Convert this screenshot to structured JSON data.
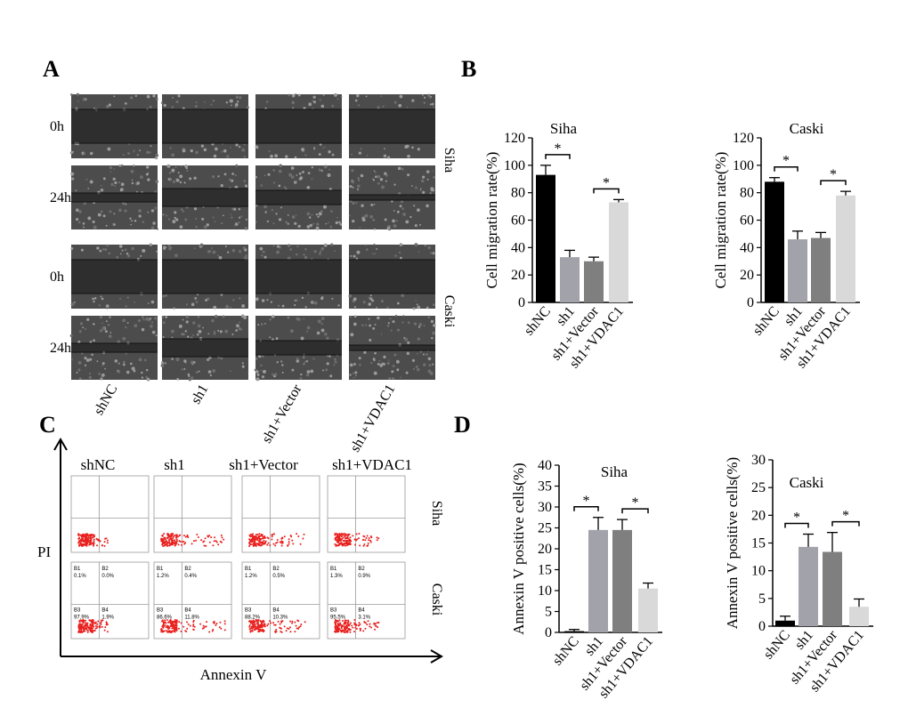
{
  "panel_labels": [
    "A",
    "B",
    "C",
    "D"
  ],
  "wound": {
    "times": [
      "0h",
      "24h",
      "0h",
      "24h"
    ],
    "cells": [
      "Siha",
      "Caski"
    ],
    "groups": [
      "shNC",
      "sh1",
      "sh1+Vector",
      "sh1+VDAC1"
    ]
  },
  "flow": {
    "columns": [
      "shNC",
      "sh1",
      "sh1+Vector",
      "sh1+VDAC1"
    ],
    "rows": [
      "Siha",
      "Caski"
    ],
    "y_label": "PI",
    "x_label": "Annexin V",
    "caski_quadrants": [
      [
        [
          "B1",
          "0.1%"
        ],
        [
          "B2",
          "0.0%"
        ],
        [
          "B3",
          "97.9%"
        ],
        [
          "B4",
          "1.9%"
        ]
      ],
      [
        [
          "B1",
          "1.2%"
        ],
        [
          "B2",
          "0.4%"
        ],
        [
          "B3",
          "86.6%"
        ],
        [
          "B4",
          "11.8%"
        ]
      ],
      [
        [
          "B1",
          "1.2%"
        ],
        [
          "B2",
          "0.5%"
        ],
        [
          "B3",
          "88.2%"
        ],
        [
          "B4",
          "10.3%"
        ]
      ],
      [
        [
          "B1",
          "1.3%"
        ],
        [
          "B2",
          "0.9%"
        ],
        [
          "B3",
          "95.5%"
        ],
        [
          "B4",
          "3.1%"
        ]
      ]
    ]
  },
  "chart_data": [
    {
      "type": "bar",
      "title": "Siha",
      "y_label": "Cell migration rate(%)",
      "categories": [
        "shNC",
        "sh1",
        "sh1+Vector",
        "sh1+VDAC1"
      ],
      "values": [
        93,
        33,
        30,
        73
      ],
      "errors": [
        7,
        5,
        3,
        2
      ],
      "colors": [
        "#000000",
        "#a2a2aa",
        "#7f7f7f",
        "#d9d9d9"
      ],
      "ylim": [
        0,
        120
      ],
      "yticks": [
        0,
        20,
        40,
        60,
        80,
        100,
        120
      ],
      "annotations": [
        "*",
        "*"
      ]
    },
    {
      "type": "bar",
      "title": "Caski",
      "y_label": "Cell migration rate(%)",
      "categories": [
        "shNC",
        "sh1",
        "sh1+Vector",
        "sh1+VDAC1"
      ],
      "values": [
        88,
        46,
        47,
        78
      ],
      "errors": [
        3,
        6,
        4,
        3
      ],
      "colors": [
        "#000000",
        "#a2a2aa",
        "#7f7f7f",
        "#d9d9d9"
      ],
      "ylim": [
        0,
        120
      ],
      "yticks": [
        0,
        20,
        40,
        60,
        80,
        100,
        120
      ],
      "annotations": [
        "*",
        "*"
      ]
    },
    {
      "type": "bar",
      "title": "Siha",
      "y_label": "Annexin V positive cells(%)",
      "categories": [
        "shNC",
        "sh1",
        "sh1+Vector",
        "sh1+VDAC1"
      ],
      "values": [
        0.3,
        24.5,
        24.5,
        10.5
      ],
      "errors": [
        0.4,
        3,
        2.5,
        1.3
      ],
      "colors": [
        "#000000",
        "#a2a2aa",
        "#7f7f7f",
        "#d9d9d9"
      ],
      "ylim": [
        0,
        40
      ],
      "yticks": [
        0,
        5,
        10,
        15,
        20,
        25,
        30,
        35,
        40
      ],
      "annotations": [
        "*",
        "*"
      ]
    },
    {
      "type": "bar",
      "title": "Caski",
      "y_label": "Annexin V positive cells(%)",
      "categories": [
        "shNC",
        "sh1",
        "sh1+Vector",
        "sh1+VDAC1"
      ],
      "values": [
        1,
        14.3,
        13.4,
        3.5
      ],
      "errors": [
        0.8,
        2.3,
        3.5,
        1.4
      ],
      "colors": [
        "#000000",
        "#a2a2aa",
        "#7f7f7f",
        "#d9d9d9"
      ],
      "ylim": [
        0,
        30
      ],
      "yticks": [
        0,
        5,
        10,
        15,
        20,
        25,
        30
      ],
      "annotations": [
        "*",
        "*"
      ]
    }
  ]
}
